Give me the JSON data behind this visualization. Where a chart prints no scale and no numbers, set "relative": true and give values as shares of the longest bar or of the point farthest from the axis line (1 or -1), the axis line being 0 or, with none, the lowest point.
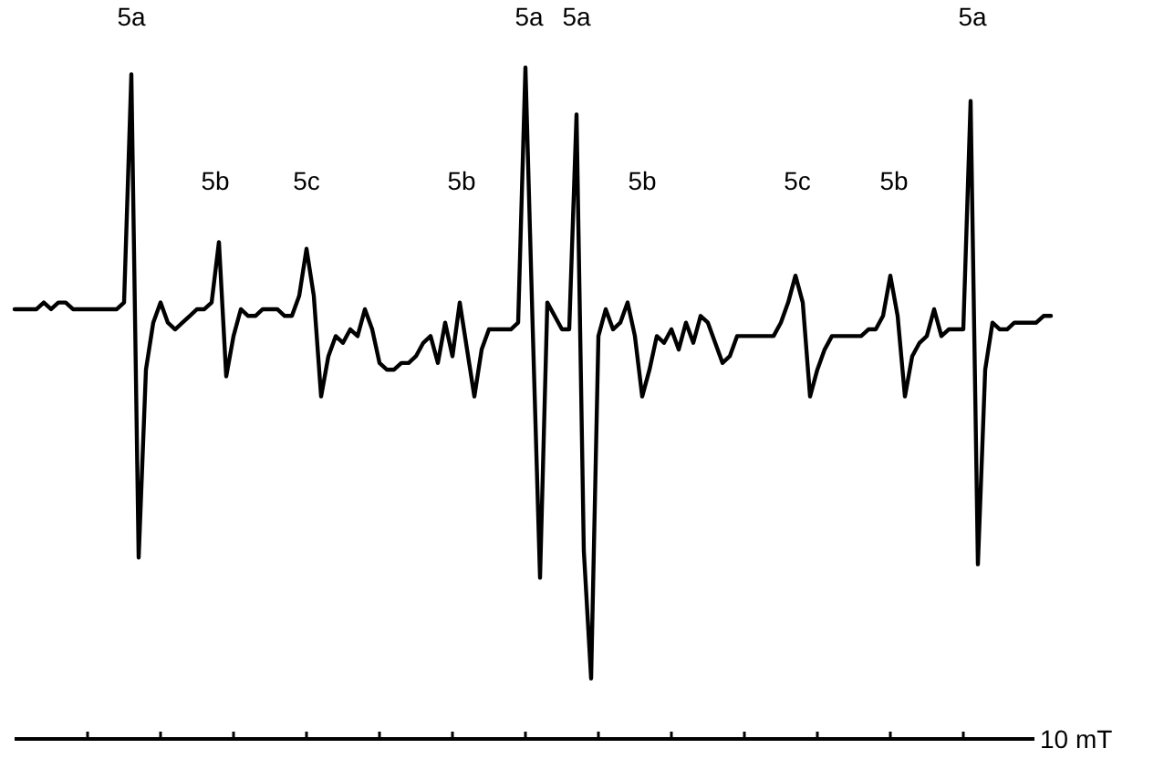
{
  "chart_data": {
    "type": "line",
    "relative": true,
    "color": "#000000",
    "xlabel": "10 mT",
    "categories": [
      null,
      null,
      null,
      null,
      null,
      null,
      null,
      null,
      null,
      null,
      null,
      null,
      null,
      null,
      null,
      null,
      null,
      null,
      null,
      null,
      null,
      null,
      null,
      null,
      null,
      null,
      null,
      null,
      null,
      null,
      null,
      null,
      null,
      null,
      null,
      null,
      null,
      null,
      null,
      null,
      null,
      null,
      null,
      null,
      null,
      null,
      null,
      null,
      null,
      null,
      null,
      null,
      null,
      null,
      null,
      null,
      null,
      null,
      null,
      null,
      null,
      null,
      null,
      null,
      null,
      null,
      null,
      null,
      null,
      null,
      null,
      null,
      null,
      null,
      null,
      null,
      null,
      null,
      null,
      null,
      null,
      null,
      null,
      null,
      null,
      null,
      null,
      null,
      null,
      null,
      null,
      null,
      null,
      null,
      null,
      null,
      null,
      null,
      null,
      null,
      null,
      null,
      null,
      null,
      null,
      null,
      null,
      null,
      null,
      null,
      null,
      null,
      null,
      null,
      null,
      null,
      null,
      null,
      null,
      null,
      null,
      null,
      null,
      null,
      null,
      null,
      null,
      null,
      null,
      null,
      null,
      null,
      null,
      null,
      null,
      null,
      null,
      null,
      null,
      null,
      null,
      null,
      null
    ],
    "values": [
      0.64,
      0.64,
      0.64,
      0.64,
      0.65,
      0.64,
      0.65,
      0.65,
      0.64,
      0.64,
      0.64,
      0.64,
      0.64,
      0.64,
      0.64,
      0.65,
      0.99,
      0.27,
      0.55,
      0.62,
      0.65,
      0.62,
      0.61,
      0.62,
      0.63,
      0.64,
      0.64,
      0.65,
      0.74,
      0.54,
      0.6,
      0.64,
      0.63,
      0.63,
      0.64,
      0.64,
      0.64,
      0.63,
      0.63,
      0.66,
      0.73,
      0.66,
      0.51,
      0.57,
      0.6,
      0.59,
      0.61,
      0.6,
      0.64,
      0.61,
      0.56,
      0.55,
      0.55,
      0.56,
      0.56,
      0.57,
      0.59,
      0.6,
      0.56,
      0.62,
      0.57,
      0.65,
      0.58,
      0.51,
      0.58,
      0.61,
      0.61,
      0.61,
      0.61,
      0.62,
      1.0,
      0.61,
      0.24,
      0.65,
      0.63,
      0.61,
      0.61,
      0.93,
      0.28,
      0.09,
      0.6,
      0.64,
      0.61,
      0.62,
      0.65,
      0.6,
      0.51,
      0.55,
      0.6,
      0.59,
      0.61,
      0.58,
      0.62,
      0.59,
      0.63,
      0.62,
      0.59,
      0.56,
      0.57,
      0.6,
      0.6,
      0.6,
      0.6,
      0.6,
      0.6,
      0.62,
      0.65,
      0.69,
      0.65,
      0.51,
      0.55,
      0.58,
      0.6,
      0.6,
      0.6,
      0.6,
      0.6,
      0.61,
      0.61,
      0.63,
      0.69,
      0.63,
      0.51,
      0.57,
      0.59,
      0.6,
      0.64,
      0.6,
      0.61,
      0.61,
      0.61,
      0.95,
      0.26,
      0.55,
      0.62,
      0.61,
      0.61,
      0.62,
      0.62,
      0.62,
      0.62,
      0.63,
      0.63
    ],
    "annotations": [
      "5a",
      "5b",
      "5c",
      "5b",
      "5a",
      "5a",
      "5b",
      "5c",
      "5b",
      "5a"
    ]
  }
}
